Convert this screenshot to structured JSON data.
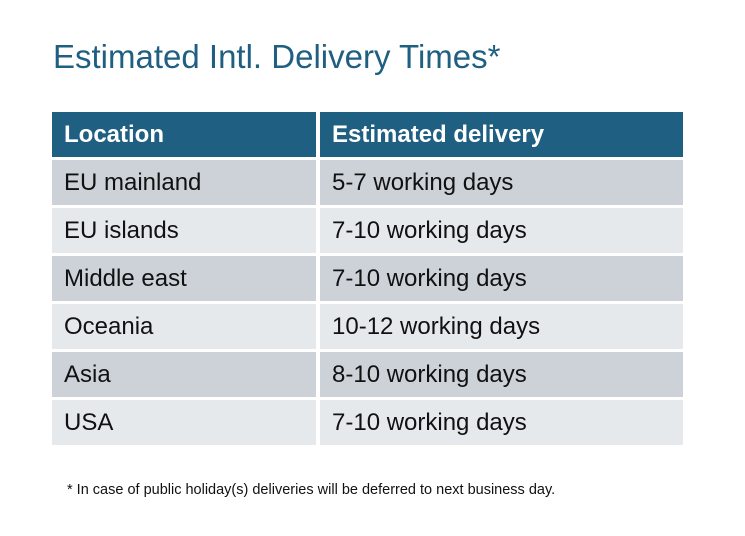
{
  "title": "Estimated Intl. Delivery Times*",
  "table": {
    "headers": [
      "Location",
      "Estimated delivery"
    ],
    "rows": [
      [
        "EU mainland",
        "5-7 working days"
      ],
      [
        "EU islands",
        "7-10 working days"
      ],
      [
        "Middle east",
        "7-10 working days"
      ],
      [
        "Oceania",
        "10-12 working days"
      ],
      [
        "Asia",
        "8-10 working days"
      ],
      [
        "USA",
        "7-10 working days"
      ]
    ]
  },
  "footnote": "* In case of public holiday(s) deliveries will be deferred to next business day.",
  "colors": {
    "accent": "#1f5f82",
    "row_dark": "#cdd2d9",
    "row_light": "#e6e9ec"
  }
}
